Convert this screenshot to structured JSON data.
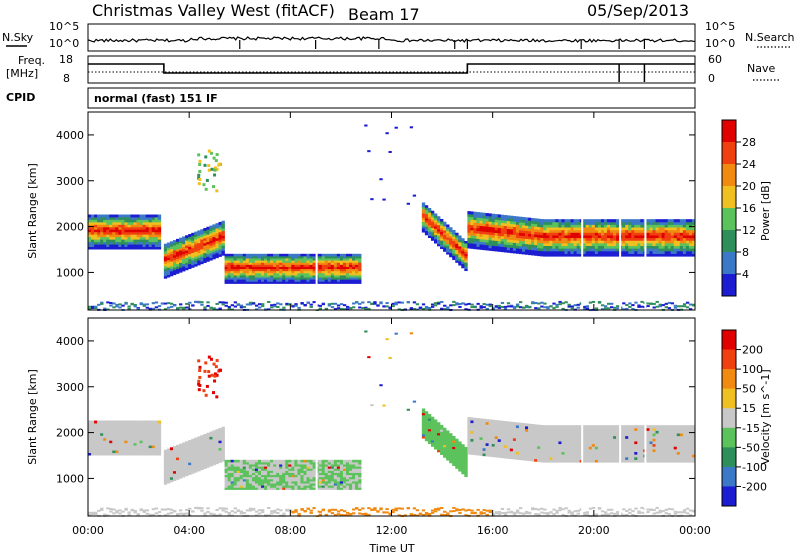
{
  "header": {
    "station": "Christmas Valley West (fitACF)",
    "beam": "Beam 17",
    "date": "05/Sep/2013"
  },
  "top_panels": {
    "nsky_label": "N.Sky",
    "nsearch_label": "N.Search",
    "freq_label": "Freq.",
    "freq_unit": "[MHz]",
    "nave_label": "Nave",
    "cpid_label": "CPID",
    "cpid_text": "normal (fast) 151 IF",
    "noise_ticks": [
      "10^5",
      "10^0"
    ],
    "noise_right_ticks": [
      "10^5",
      "10^0"
    ],
    "freq_ticks": [
      "18",
      "8"
    ],
    "nave_ticks": [
      "60",
      "0"
    ]
  },
  "colors": {
    "power": [
      "#1c1cd2",
      "#3c78c8",
      "#2f8f5a",
      "#5cc25c",
      "#f0c020",
      "#f08a10",
      "#f04010",
      "#e00000"
    ],
    "velocity": [
      "#1c1cd2",
      "#3c78c8",
      "#2f8f5a",
      "#5cc25c",
      "#c8c8c8",
      "#f0c020",
      "#f08a10",
      "#f04010",
      "#e00000"
    ],
    "ground": "#b4b4b4"
  },
  "chart_data": [
    {
      "type": "heatmap",
      "name": "power",
      "ylabel": "Slant Range [km]",
      "colorbar_label": "Power [dB]",
      "colorbar_ticks": [
        "28",
        "24",
        "20",
        "16",
        "12",
        "8",
        "4"
      ],
      "xlim": [
        0,
        24
      ],
      "ylim": [
        180,
        4500
      ],
      "yticks": [
        1000,
        2000,
        3000,
        4000
      ],
      "echo_bands": [
        {
          "t0": 0.0,
          "t1": 2.9,
          "center": 1850,
          "width": 700
        },
        {
          "t0": 3.0,
          "t1": 5.4,
          "center": 1500,
          "width": 700
        },
        {
          "t0": 5.4,
          "t1": 10.8,
          "center": 1050,
          "width": 600
        },
        {
          "t0": 13.2,
          "t1": 15.0,
          "center": 1700,
          "width": 600
        },
        {
          "t0": 15.0,
          "t1": 24.0,
          "center": 1800,
          "width": 750
        }
      ]
    },
    {
      "type": "heatmap",
      "name": "velocity",
      "ylabel": "Slant Range [km]",
      "colorbar_label": "Velocity [m s^-1]",
      "colorbar_ticks": [
        "200",
        "100",
        "50",
        "15",
        "-15",
        "-50",
        "-100",
        "-200"
      ],
      "xlim": [
        0,
        24
      ],
      "ylim": [
        180,
        4500
      ],
      "yticks": [
        1000,
        2000,
        3000,
        4000
      ]
    }
  ],
  "x_axis": {
    "label": "Time UT",
    "ticks": [
      "00:00",
      "04:00",
      "08:00",
      "12:00",
      "16:00",
      "20:00",
      "00:00"
    ]
  }
}
